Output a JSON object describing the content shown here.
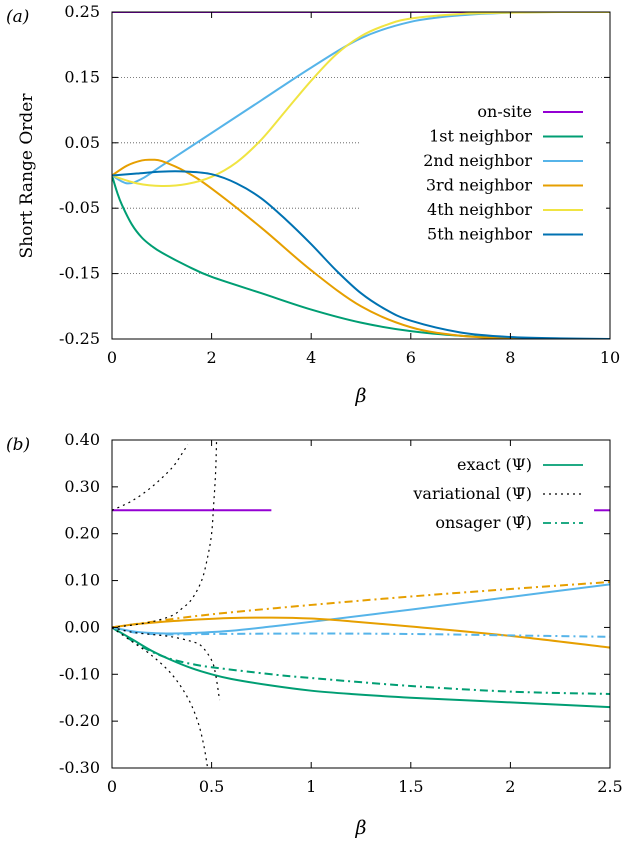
{
  "chart_data": [
    {
      "panel": "(a)",
      "type": "line",
      "xlabel": "β",
      "ylabel": "Short Range Order",
      "xlim": [
        0,
        10
      ],
      "ylim": [
        -0.25,
        0.25
      ],
      "x_ticks": [
        "0",
        "2",
        "4",
        "6",
        "8",
        "10"
      ],
      "y_ticks": [
        "-0.25",
        "-0.15",
        "-0.05",
        "0.05",
        "0.15",
        "0.25"
      ],
      "grid": "dotted horizontal lines at tick values",
      "legend_position": "right-center",
      "series": [
        {
          "name": "on-site",
          "color": "#9400d3",
          "x": [
            0,
            10
          ],
          "y": [
            0.25,
            0.25
          ]
        },
        {
          "name": "1st neighbor",
          "color": "#009e73",
          "x": [
            0,
            0.1,
            0.2,
            0.4,
            0.6,
            0.8,
            1.0,
            1.5,
            2,
            3,
            4,
            5,
            6,
            7,
            8,
            9,
            10
          ],
          "y": [
            0,
            -0.025,
            -0.045,
            -0.075,
            -0.095,
            -0.108,
            -0.118,
            -0.138,
            -0.155,
            -0.18,
            -0.205,
            -0.225,
            -0.238,
            -0.245,
            -0.248,
            -0.25,
            -0.25
          ]
        },
        {
          "name": "2nd neighbor",
          "color": "#56b4e9",
          "x": [
            0,
            0.3,
            0.6,
            1.0,
            2,
            3,
            4,
            5,
            6,
            7,
            8,
            9,
            10
          ],
          "y": [
            0,
            -0.012,
            -0.005,
            0.015,
            0.065,
            0.115,
            0.165,
            0.21,
            0.235,
            0.245,
            0.249,
            0.25,
            0.25
          ]
        },
        {
          "name": "3rd neighbor",
          "color": "#e69f00",
          "x": [
            0,
            0.3,
            0.6,
            0.8,
            1.0,
            1.5,
            2,
            3,
            4,
            5,
            6,
            7,
            8,
            9,
            10
          ],
          "y": [
            0,
            0.015,
            0.023,
            0.024,
            0.022,
            0.005,
            -0.02,
            -0.08,
            -0.145,
            -0.2,
            -0.232,
            -0.245,
            -0.249,
            -0.25,
            -0.25
          ]
        },
        {
          "name": "4th neighbor",
          "color": "#f0e442",
          "x": [
            0,
            0.5,
            1.0,
            1.5,
            2,
            2.5,
            3,
            3.5,
            4,
            4.5,
            5,
            5.5,
            6,
            7,
            8,
            9,
            10
          ],
          "y": [
            0,
            -0.012,
            -0.016,
            -0.013,
            -0.002,
            0.02,
            0.055,
            0.1,
            0.145,
            0.185,
            0.213,
            0.23,
            0.24,
            0.247,
            0.249,
            0.25,
            0.25
          ]
        },
        {
          "name": "5th neighbor",
          "color": "#0072b2",
          "x": [
            0,
            0.5,
            1.0,
            1.5,
            2,
            2.5,
            3,
            3.5,
            4,
            4.5,
            5,
            5.5,
            6,
            7,
            8,
            9,
            10
          ],
          "y": [
            0,
            0.003,
            0.006,
            0.006,
            0.002,
            -0.012,
            -0.035,
            -0.068,
            -0.105,
            -0.145,
            -0.18,
            -0.205,
            -0.222,
            -0.24,
            -0.247,
            -0.249,
            -0.25
          ]
        }
      ]
    },
    {
      "panel": "(b)",
      "type": "line",
      "xlabel": "β",
      "ylabel": "",
      "xlim": [
        0,
        2.5
      ],
      "ylim": [
        -0.3,
        0.4
      ],
      "x_ticks": [
        "0",
        "0.5",
        "1",
        "1.5",
        "2",
        "2.5"
      ],
      "y_ticks": [
        "-0.30",
        "-0.20",
        "-0.10",
        "0.00",
        "0.10",
        "0.20",
        "0.30",
        "0.40"
      ],
      "grid": "none",
      "legend_position": "top-right",
      "legend": [
        {
          "label": "exact (Ψ)",
          "style": "solid",
          "color": "#009e73"
        },
        {
          "label": "variational (Ψ̄)",
          "style": "dotted",
          "color": "#000000"
        },
        {
          "label": "onsager (Ψ̂)",
          "style": "dash-dot",
          "color": "#009e73"
        }
      ],
      "series": [
        {
          "kind": "exact",
          "style": "solid",
          "color": "#9400d3",
          "segments": [
            {
              "x": [
                0,
                0.8
              ],
              "y": [
                0.25,
                0.25
              ]
            },
            {
              "x": [
                2.42,
                2.5
              ],
              "y": [
                0.25,
                0.25
              ]
            }
          ]
        },
        {
          "kind": "exact",
          "style": "solid",
          "color": "#009e73",
          "x": [
            0,
            0.1,
            0.2,
            0.3,
            0.4,
            0.5,
            0.6,
            0.8,
            1.0,
            1.2,
            1.5,
            2.0,
            2.5
          ],
          "y": [
            0,
            -0.025,
            -0.05,
            -0.07,
            -0.087,
            -0.1,
            -0.11,
            -0.124,
            -0.135,
            -0.142,
            -0.15,
            -0.16,
            -0.17
          ]
        },
        {
          "kind": "exact",
          "style": "solid",
          "color": "#56b4e9",
          "x": [
            0,
            0.1,
            0.2,
            0.3,
            0.4,
            0.6,
            0.8,
            1.0,
            1.5,
            2.0,
            2.5
          ],
          "y": [
            0,
            -0.008,
            -0.012,
            -0.013,
            -0.012,
            -0.007,
            0.002,
            0.012,
            0.038,
            0.065,
            0.092
          ]
        },
        {
          "kind": "exact",
          "style": "solid",
          "color": "#e69f00",
          "x": [
            0,
            0.1,
            0.2,
            0.4,
            0.6,
            0.8,
            1.0,
            1.2,
            1.5,
            2.0,
            2.5
          ],
          "y": [
            0,
            0.006,
            0.01,
            0.016,
            0.02,
            0.021,
            0.019,
            0.013,
            0.002,
            -0.018,
            -0.043
          ]
        },
        {
          "kind": "onsager",
          "style": "dash-dot",
          "color": "#009e73",
          "x": [
            0,
            0.1,
            0.2,
            0.3,
            0.4,
            0.5,
            0.8,
            1.0,
            1.5,
            2.0,
            2.5
          ],
          "y": [
            0,
            -0.028,
            -0.052,
            -0.068,
            -0.078,
            -0.085,
            -0.1,
            -0.108,
            -0.125,
            -0.137,
            -0.142
          ]
        },
        {
          "kind": "onsager",
          "style": "dash-dot",
          "color": "#56b4e9",
          "x": [
            0,
            0.1,
            0.2,
            0.3,
            0.5,
            1.0,
            1.5,
            2.0,
            2.5
          ],
          "y": [
            0,
            -0.01,
            -0.014,
            -0.015,
            -0.014,
            -0.013,
            -0.014,
            -0.017,
            -0.02
          ]
        },
        {
          "kind": "onsager",
          "style": "dash-dot",
          "color": "#e69f00",
          "x": [
            0,
            0.2,
            0.5,
            1.0,
            1.5,
            2.0,
            2.5
          ],
          "y": [
            0,
            0.012,
            0.028,
            0.048,
            0.066,
            0.082,
            0.097
          ]
        },
        {
          "kind": "variational",
          "style": "dotted",
          "color": "#000000",
          "x": [
            0,
            0.1,
            0.2,
            0.3,
            0.35,
            0.38
          ],
          "y": [
            0.25,
            0.27,
            0.3,
            0.34,
            0.37,
            0.39
          ]
        },
        {
          "kind": "variational",
          "style": "dotted",
          "color": "#000000",
          "x": [
            0,
            0.1,
            0.2,
            0.3,
            0.38,
            0.43,
            0.46,
            0.48
          ],
          "y": [
            0,
            -0.03,
            -0.06,
            -0.1,
            -0.15,
            -0.2,
            -0.25,
            -0.3
          ]
        },
        {
          "kind": "variational",
          "style": "dotted",
          "color": "#000000",
          "x": [
            0,
            0.1,
            0.2,
            0.3,
            0.35,
            0.4,
            0.45,
            0.48,
            0.5,
            0.51,
            0.52,
            0.525
          ],
          "y": [
            0,
            0.005,
            0.012,
            0.025,
            0.04,
            0.06,
            0.1,
            0.15,
            0.2,
            0.26,
            0.33,
            0.4
          ]
        },
        {
          "kind": "variational",
          "style": "dotted",
          "color": "#000000",
          "x": [
            0,
            0.1,
            0.2,
            0.3,
            0.4,
            0.45,
            0.5,
            0.52,
            0.54
          ],
          "y": [
            0,
            -0.01,
            -0.015,
            -0.02,
            -0.03,
            -0.04,
            -0.07,
            -0.1,
            -0.155
          ]
        }
      ]
    }
  ]
}
